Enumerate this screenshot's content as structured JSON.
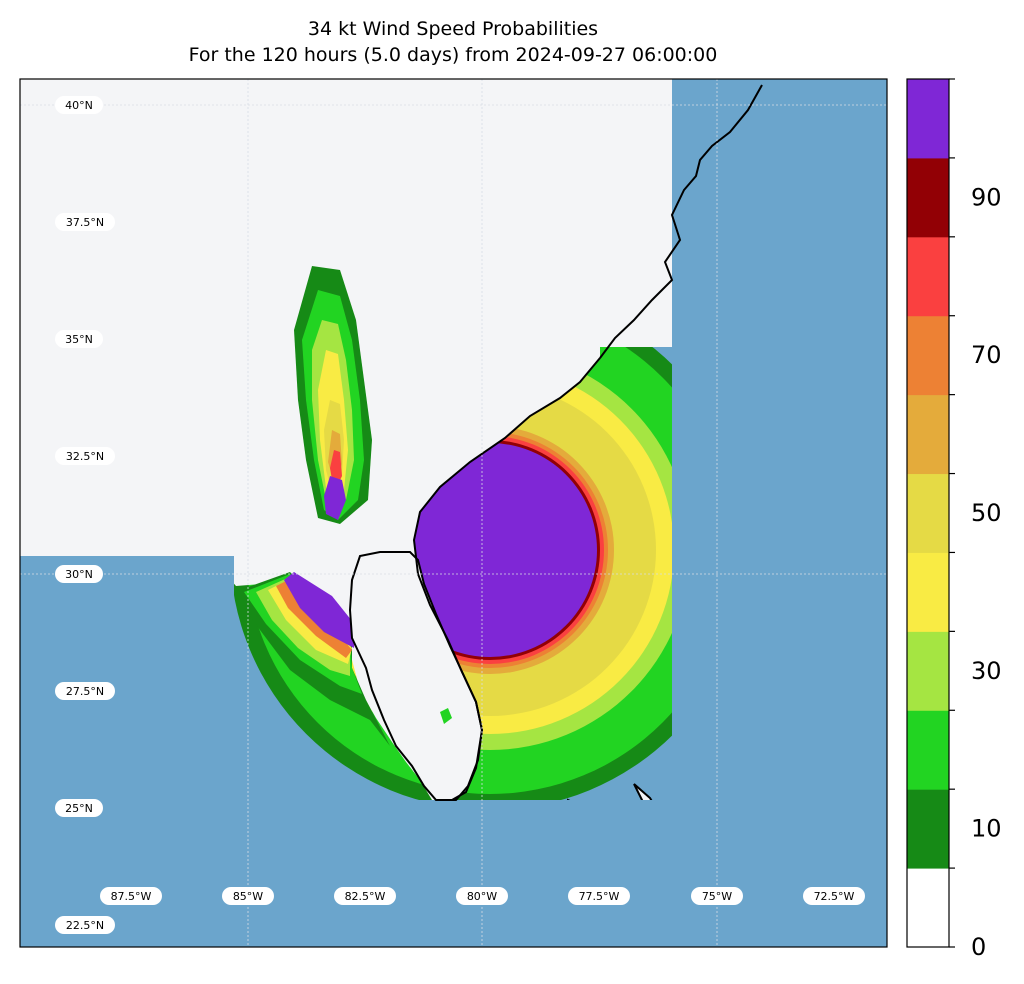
{
  "title": {
    "line1": "34 kt Wind Speed Probabilities",
    "line2": "For the 120 hours (5.0 days) from 2024-09-27 06:00:00"
  },
  "map": {
    "lat_labels": [
      "40°N",
      "37.5°N",
      "35°N",
      "32.5°N",
      "30°N",
      "27.5°N",
      "25°N",
      "22.5°N"
    ],
    "lon_labels": [
      "87.5°W",
      "85°W",
      "82.5°W",
      "80°W",
      "77.5°W",
      "75°W",
      "72.5°W"
    ],
    "ocean_color": "#6ba5cc",
    "land_color": "#f4f5f7"
  },
  "colorbar": {
    "ticks": [
      "0",
      "10",
      "30",
      "50",
      "70",
      "90"
    ],
    "bands": [
      {
        "range": "0-10",
        "color": "#ffffff"
      },
      {
        "range": "10-20",
        "color": "#168a16"
      },
      {
        "range": "20-30",
        "color": "#22d422"
      },
      {
        "range": "30-40",
        "color": "#a5e542"
      },
      {
        "range": "40-50",
        "color": "#f9eb44"
      },
      {
        "range": "50-60",
        "color": "#e5da45"
      },
      {
        "range": "60-70",
        "color": "#e4ab3b"
      },
      {
        "range": "70-80",
        "color": "#ed8134"
      },
      {
        "range": "80-90",
        "color": "#fa4040"
      },
      {
        "range": "90-100",
        "color": "#920005"
      },
      {
        "range": "100",
        "color": "#7f27d6"
      }
    ]
  }
}
